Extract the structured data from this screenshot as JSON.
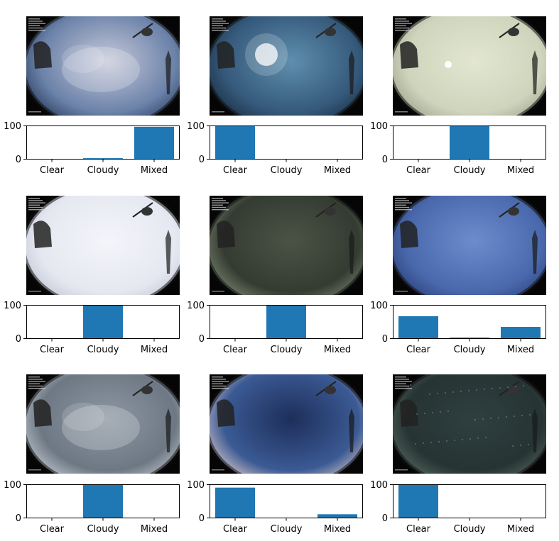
{
  "chart_data": [
    {
      "type": "bar",
      "categories": [
        "Clear",
        "Cloudy",
        "Mixed"
      ],
      "values": [
        0,
        2,
        96
      ],
      "ylim": [
        0,
        100
      ],
      "yticks": [
        0,
        100
      ],
      "sky": {
        "tone": "dusk-pink",
        "c1": "#c7c9da",
        "c2": "#6b82a9",
        "c3": "#2a3e5f"
      }
    },
    {
      "type": "bar",
      "categories": [
        "Clear",
        "Cloudy",
        "Mixed"
      ],
      "values": [
        100,
        0,
        0
      ],
      "ylim": [
        0,
        100
      ],
      "yticks": [
        0,
        100
      ],
      "sky": {
        "tone": "sunny-blue",
        "c1": "#5f8fae",
        "c2": "#35597a",
        "c3": "#1b2e44"
      }
    },
    {
      "type": "bar",
      "categories": [
        "Clear",
        "Cloudy",
        "Mixed"
      ],
      "values": [
        0,
        100,
        0
      ],
      "ylim": [
        0,
        100
      ],
      "yticks": [
        0,
        100
      ],
      "sky": {
        "tone": "overcast-pale",
        "c1": "#e2e6d2",
        "c2": "#cfd5bc",
        "c3": "#9ea48d"
      }
    },
    {
      "type": "bar",
      "categories": [
        "Clear",
        "Cloudy",
        "Mixed"
      ],
      "values": [
        0,
        100,
        0
      ],
      "ylim": [
        0,
        100
      ],
      "yticks": [
        0,
        100
      ],
      "sky": {
        "tone": "overcast-white",
        "c1": "#f4f5fa",
        "c2": "#e6e8f1",
        "c3": "#c4c8d6"
      }
    },
    {
      "type": "bar",
      "categories": [
        "Clear",
        "Cloudy",
        "Mixed"
      ],
      "values": [
        0,
        100,
        0
      ],
      "ylim": [
        0,
        100
      ],
      "yticks": [
        0,
        100
      ],
      "sky": {
        "tone": "dark-green",
        "c1": "#4b5346",
        "c2": "#343b31",
        "c3": "#7c8771"
      }
    },
    {
      "type": "bar",
      "categories": [
        "Clear",
        "Cloudy",
        "Mixed"
      ],
      "values": [
        66,
        2,
        34
      ],
      "ylim": [
        0,
        100
      ],
      "yticks": [
        0,
        100
      ],
      "sky": {
        "tone": "blue",
        "c1": "#6c8ccc",
        "c2": "#4a69ad",
        "c3": "#2c427a"
      }
    },
    {
      "type": "bar",
      "categories": [
        "Clear",
        "Cloudy",
        "Mixed"
      ],
      "values": [
        0,
        100,
        0
      ],
      "ylim": [
        0,
        100
      ],
      "yticks": [
        0,
        100
      ],
      "sky": {
        "tone": "grey-clouds",
        "c1": "#8d98a3",
        "c2": "#6d7884",
        "c3": "#c2c9d0"
      }
    },
    {
      "type": "bar",
      "categories": [
        "Clear",
        "Cloudy",
        "Mixed"
      ],
      "values": [
        90,
        0,
        10
      ],
      "ylim": [
        0,
        100
      ],
      "yticks": [
        0,
        100
      ],
      "sky": {
        "tone": "twilight-blue",
        "c1": "#1d2e5a",
        "c2": "#3b5a94",
        "c3": "#d5c5c8"
      }
    },
    {
      "type": "bar",
      "categories": [
        "Clear",
        "Cloudy",
        "Mixed"
      ],
      "values": [
        100,
        0,
        0
      ],
      "ylim": [
        0,
        100
      ],
      "yticks": [
        0,
        100
      ],
      "sky": {
        "tone": "night-stars",
        "c1": "#2f3f3f",
        "c2": "#263433",
        "c3": "#55665e"
      }
    }
  ],
  "bar_color": "#1f77b4"
}
